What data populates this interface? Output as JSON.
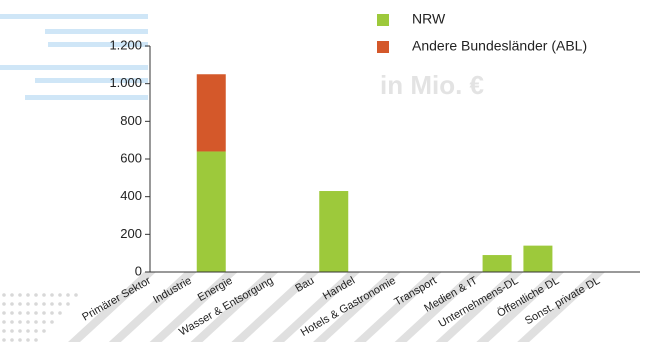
{
  "chart_data": {
    "type": "bar",
    "stacked": true,
    "unit_note": "in Mio. €",
    "categories": [
      "Primärer Sektor",
      "Industrie",
      "Energie",
      "Wasser & Entsorgung",
      "Bau",
      "Handel",
      "Hotels & Gastronomie",
      "Transport",
      "Medien & IT",
      "Unternehmens-DL",
      "Öffentliche DL",
      "Sonst. private DL"
    ],
    "series": [
      {
        "name": "NRW",
        "color": "#9dc93b",
        "values": [
          0,
          640,
          0,
          0,
          430,
          0,
          0,
          0,
          90,
          140,
          0,
          0
        ]
      },
      {
        "name": "Andere Bundesländer (ABL)",
        "color": "#d4582a",
        "values": [
          0,
          410,
          0,
          0,
          0,
          0,
          0,
          0,
          0,
          0,
          0,
          0
        ]
      }
    ],
    "ylim": [
      0,
      1200
    ],
    "yticks": [
      0,
      200,
      400,
      600,
      800,
      {
        "value": 1000,
        "label": "1.000"
      },
      {
        "value": 1200,
        "label": "1.200"
      }
    ]
  }
}
